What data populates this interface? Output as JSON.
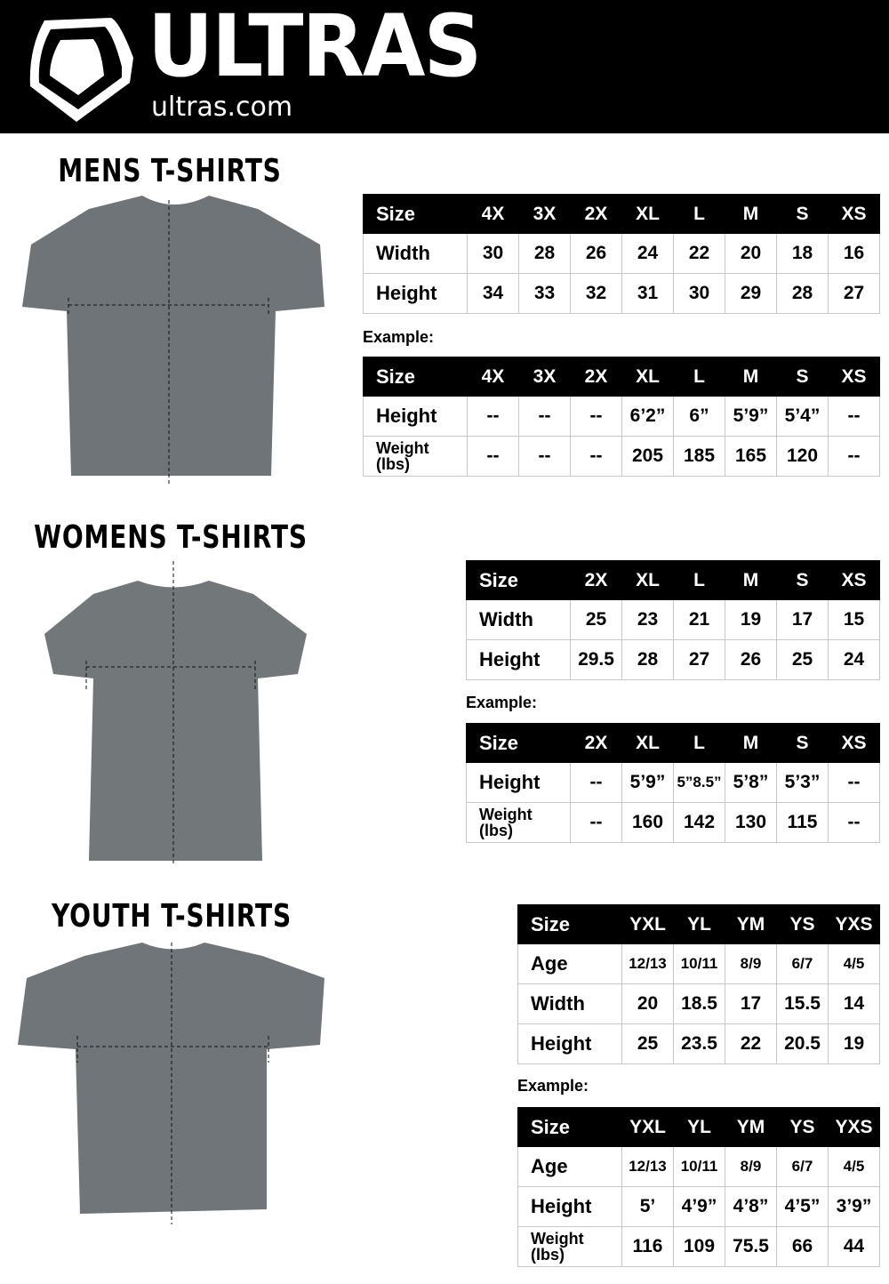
{
  "header": {
    "brand": "ULTRAS",
    "site": "ultras.com"
  },
  "example_label": "Example:",
  "sections": [
    {
      "title": "MENS T-SHIRTS",
      "size_table": {
        "header": [
          "Size",
          "4X",
          "3X",
          "2X",
          "XL",
          "L",
          "M",
          "S",
          "XS"
        ],
        "rows": [
          [
            "Width",
            "30",
            "28",
            "26",
            "24",
            "22",
            "20",
            "18",
            "16"
          ],
          [
            "Height",
            "34",
            "33",
            "32",
            "31",
            "30",
            "29",
            "28",
            "27"
          ]
        ]
      },
      "example_table": {
        "header": [
          "Size",
          "4X",
          "3X",
          "2X",
          "XL",
          "L",
          "M",
          "S",
          "XS"
        ],
        "rows": [
          [
            "Height",
            "--",
            "--",
            "--",
            "6’2”",
            "6”",
            "5’9”",
            "5’4”",
            "--"
          ],
          [
            "Weight (lbs)",
            "--",
            "--",
            "--",
            "205",
            "185",
            "165",
            "120",
            "--"
          ]
        ]
      }
    },
    {
      "title": "WOMENS T-SHIRTS",
      "size_table": {
        "header": [
          "Size",
          "2X",
          "XL",
          "L",
          "M",
          "S",
          "XS"
        ],
        "rows": [
          [
            "Width",
            "25",
            "23",
            "21",
            "19",
            "17",
            "15"
          ],
          [
            "Height",
            "29.5",
            "28",
            "27",
            "26",
            "25",
            "24"
          ]
        ]
      },
      "example_table": {
        "header": [
          "Size",
          "2X",
          "XL",
          "L",
          "M",
          "S",
          "XS"
        ],
        "rows": [
          [
            "Height",
            "--",
            "5’9”",
            "5”8.5”",
            "5’8”",
            "5’3”",
            "--"
          ],
          [
            "Weight (lbs)",
            "--",
            "160",
            "142",
            "130",
            "115",
            "--"
          ]
        ]
      }
    },
    {
      "title": "YOUTH T-SHIRTS",
      "size_table": {
        "header": [
          "Size",
          "YXL",
          "YL",
          "YM",
          "YS",
          "YXS"
        ],
        "rows": [
          [
            "Age",
            "12/13",
            "10/11",
            "8/9",
            "6/7",
            "4/5"
          ],
          [
            "Width",
            "20",
            "18.5",
            "17",
            "15.5",
            "14"
          ],
          [
            "Height",
            "25",
            "23.5",
            "22",
            "20.5",
            "19"
          ]
        ]
      },
      "example_table": {
        "header": [
          "Size",
          "YXL",
          "YL",
          "YM",
          "YS",
          "YXS"
        ],
        "rows": [
          [
            "Age",
            "12/13",
            "10/11",
            "8/9",
            "6/7",
            "4/5"
          ],
          [
            "Height",
            "5’",
            "4’9”",
            "4’8”",
            "4’5”",
            "3’9”"
          ],
          [
            "Weight (lbs)",
            "116",
            "109",
            "75.5",
            "66",
            "44"
          ]
        ]
      }
    }
  ],
  "colors": {
    "header_bg": "#000000",
    "shirt": "#6f7479"
  }
}
